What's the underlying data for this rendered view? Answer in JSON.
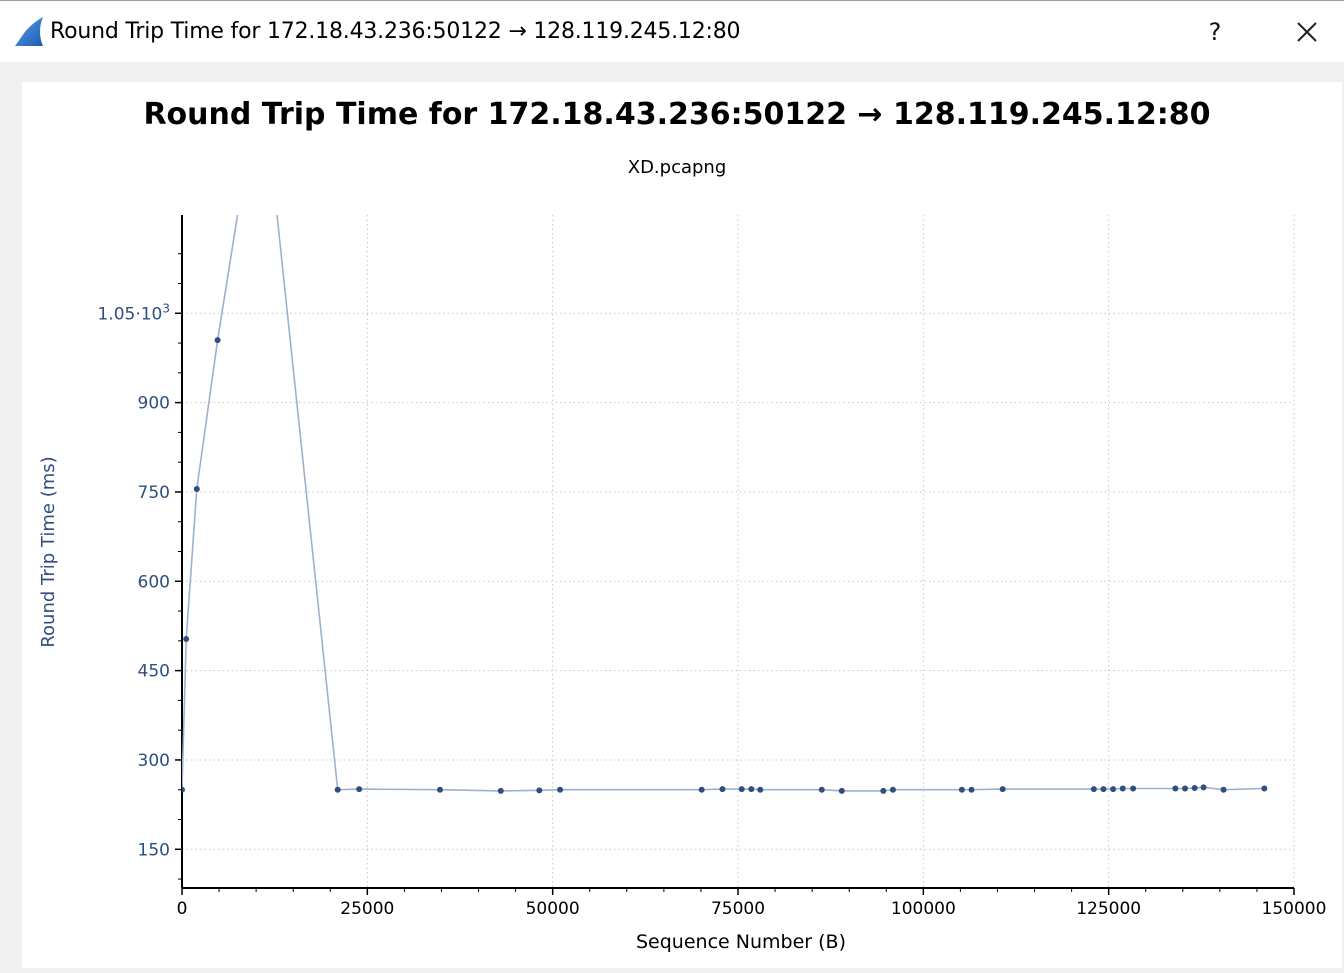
{
  "window": {
    "title": "Round Trip Time for 172.18.43.236:50122 → 128.119.245.12:80",
    "help_label": "?"
  },
  "icons": {
    "app": "wireshark-fin-icon",
    "close": "close-icon"
  },
  "colors": {
    "series": "#2f4f7f",
    "series_line": "#9eb1cc",
    "axis_text": "#2f4f7f",
    "grid": "#c8c8c8"
  },
  "chart_data": {
    "type": "line",
    "title": "Round Trip Time for 172.18.43.236:50122 → 128.119.245.12:80",
    "subtitle": "XD.pcapng",
    "xlabel": "Sequence Number (B)",
    "ylabel": "Round Trip Time (ms)",
    "xlim": [
      0,
      150000
    ],
    "ylim": [
      85,
      1215
    ],
    "xticks": [
      0,
      25000,
      50000,
      75000,
      100000,
      125000,
      150000
    ],
    "yticks": [
      {
        "value": 150,
        "label": "150"
      },
      {
        "value": 300,
        "label": "300"
      },
      {
        "value": 450,
        "label": "450"
      },
      {
        "value": 600,
        "label": "600"
      },
      {
        "value": 750,
        "label": "750"
      },
      {
        "value": 900,
        "label": "900"
      },
      {
        "value": 1050,
        "label": "1.05·10",
        "sup": "3"
      }
    ],
    "grid": true,
    "series": [
      {
        "points": [
          [
            0,
            250
          ],
          [
            566,
            503
          ],
          [
            2000,
            755
          ],
          [
            4800,
            1005
          ],
          [
            10700,
            1465
          ],
          [
            21000,
            250
          ],
          [
            23900,
            251
          ],
          [
            34800,
            250
          ],
          [
            43000,
            248
          ],
          [
            48200,
            249
          ],
          [
            51000,
            250
          ],
          [
            70100,
            250
          ],
          [
            72900,
            251
          ],
          [
            75500,
            251
          ],
          [
            76800,
            251
          ],
          [
            78000,
            250
          ],
          [
            86300,
            250
          ],
          [
            89000,
            248
          ],
          [
            94600,
            248
          ],
          [
            95900,
            250
          ],
          [
            105200,
            250
          ],
          [
            106500,
            250
          ],
          [
            110700,
            251
          ],
          [
            123000,
            251
          ],
          [
            124300,
            251
          ],
          [
            125600,
            251
          ],
          [
            126900,
            252
          ],
          [
            128300,
            252
          ],
          [
            134000,
            252
          ],
          [
            135300,
            252
          ],
          [
            136600,
            253
          ],
          [
            137800,
            254
          ],
          [
            140500,
            250
          ],
          [
            146000,
            252
          ]
        ]
      }
    ]
  }
}
